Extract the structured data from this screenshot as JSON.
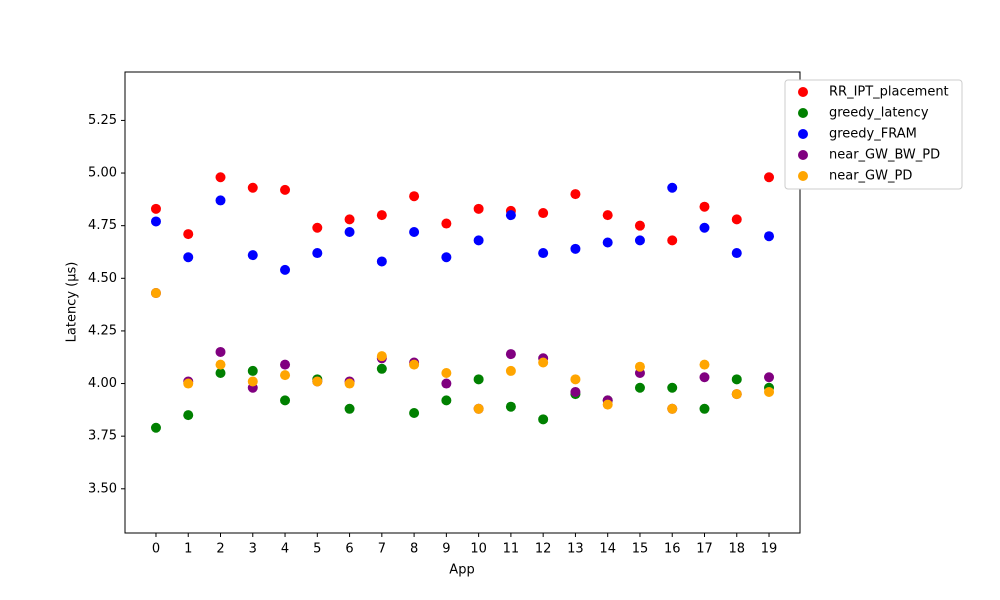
{
  "chart_data": {
    "type": "scatter",
    "x_label": "App",
    "y_label": "Latency (µs)",
    "x": [
      0,
      1,
      2,
      3,
      4,
      5,
      6,
      7,
      8,
      9,
      10,
      11,
      12,
      13,
      14,
      15,
      16,
      17,
      18,
      19
    ],
    "xlim": [
      -0.96,
      19.96
    ],
    "xticks": [
      0,
      1,
      2,
      3,
      4,
      5,
      6,
      7,
      8,
      9,
      10,
      11,
      12,
      13,
      14,
      15,
      16,
      17,
      18,
      19
    ],
    "ylim": [
      3.29,
      5.48
    ],
    "yticks": [
      {
        "value": 3.5,
        "label": "3.50"
      },
      {
        "value": 3.75,
        "label": "3.75"
      },
      {
        "value": 4.0,
        "label": "4.00"
      },
      {
        "value": 4.25,
        "label": "4.25"
      },
      {
        "value": 4.5,
        "label": "4.50"
      },
      {
        "value": 4.75,
        "label": "4.75"
      },
      {
        "value": 5.0,
        "label": "5.00"
      },
      {
        "value": 5.25,
        "label": "5.25"
      }
    ],
    "legend": "outside-upper-right",
    "series": [
      {
        "name": "RR_IPT_placement",
        "color": "red",
        "values": [
          4.83,
          4.71,
          4.98,
          4.93,
          4.92,
          4.74,
          4.78,
          4.8,
          4.89,
          4.76,
          4.83,
          4.82,
          4.81,
          4.9,
          4.8,
          4.75,
          4.68,
          4.84,
          4.78,
          4.98
        ]
      },
      {
        "name": "greedy_latency",
        "color": "green",
        "values": [
          3.79,
          3.85,
          4.05,
          4.06,
          3.92,
          4.02,
          3.88,
          4.07,
          3.86,
          3.92,
          4.02,
          3.89,
          3.83,
          3.95,
          3.92,
          3.98,
          3.98,
          3.88,
          4.02,
          3.98
        ]
      },
      {
        "name": "greedy_FRAM",
        "color": "blue",
        "values": [
          4.77,
          4.6,
          4.87,
          4.61,
          4.54,
          4.62,
          4.72,
          4.58,
          4.72,
          4.6,
          4.68,
          4.8,
          4.62,
          4.64,
          4.67,
          4.68,
          4.93,
          4.74,
          4.62,
          4.7
        ]
      },
      {
        "name": "near_GW_BW_PD",
        "color": "purple",
        "values": [
          4.43,
          4.01,
          4.15,
          3.98,
          4.09,
          4.01,
          4.01,
          4.12,
          4.1,
          4.0,
          3.88,
          4.14,
          4.12,
          3.96,
          3.92,
          4.05,
          3.88,
          4.03,
          3.95,
          4.03
        ]
      },
      {
        "name": "near_GW_PD",
        "color": "orange",
        "values": [
          4.43,
          4.0,
          4.09,
          4.01,
          4.04,
          4.01,
          4.0,
          4.13,
          4.09,
          4.05,
          3.88,
          4.06,
          4.1,
          4.02,
          3.9,
          4.08,
          3.88,
          4.09,
          3.95,
          3.96
        ]
      }
    ]
  }
}
